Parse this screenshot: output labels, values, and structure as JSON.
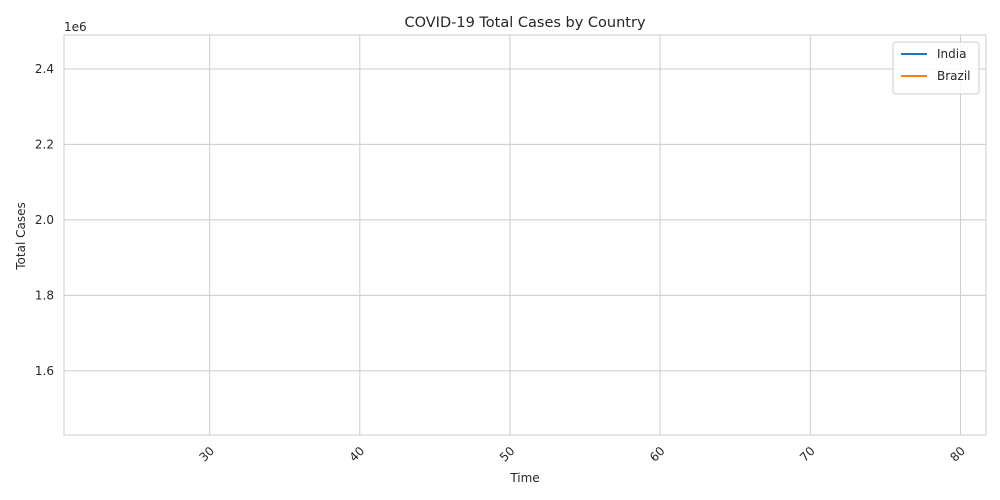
{
  "chart_data": {
    "type": "line",
    "title": "COVID-19 Total Cases by Country",
    "xlabel": "Time",
    "ylabel": "Total Cases",
    "y_offset_text": "1e6",
    "xlim": [
      20.3,
      81.7
    ],
    "ylim": [
      1430000,
      2490000
    ],
    "x_ticks": [
      30,
      40,
      50,
      60,
      70,
      80
    ],
    "x_tick_labels": [
      "30",
      "40",
      "50",
      "60",
      "70",
      "80"
    ],
    "x_tick_rotation": 45,
    "y_ticks": [
      1600000,
      1800000,
      2000000,
      2200000,
      2400000
    ],
    "y_tick_labels": [
      "1.6",
      "1.8",
      "2.0",
      "2.2",
      "2.4"
    ],
    "grid": true,
    "legend_position": "top-right",
    "series": [
      {
        "name": "India",
        "color": "#1f77b4",
        "x": [],
        "values": []
      },
      {
        "name": "Brazil",
        "color": "#ff7f0e",
        "x": [],
        "values": []
      }
    ]
  }
}
